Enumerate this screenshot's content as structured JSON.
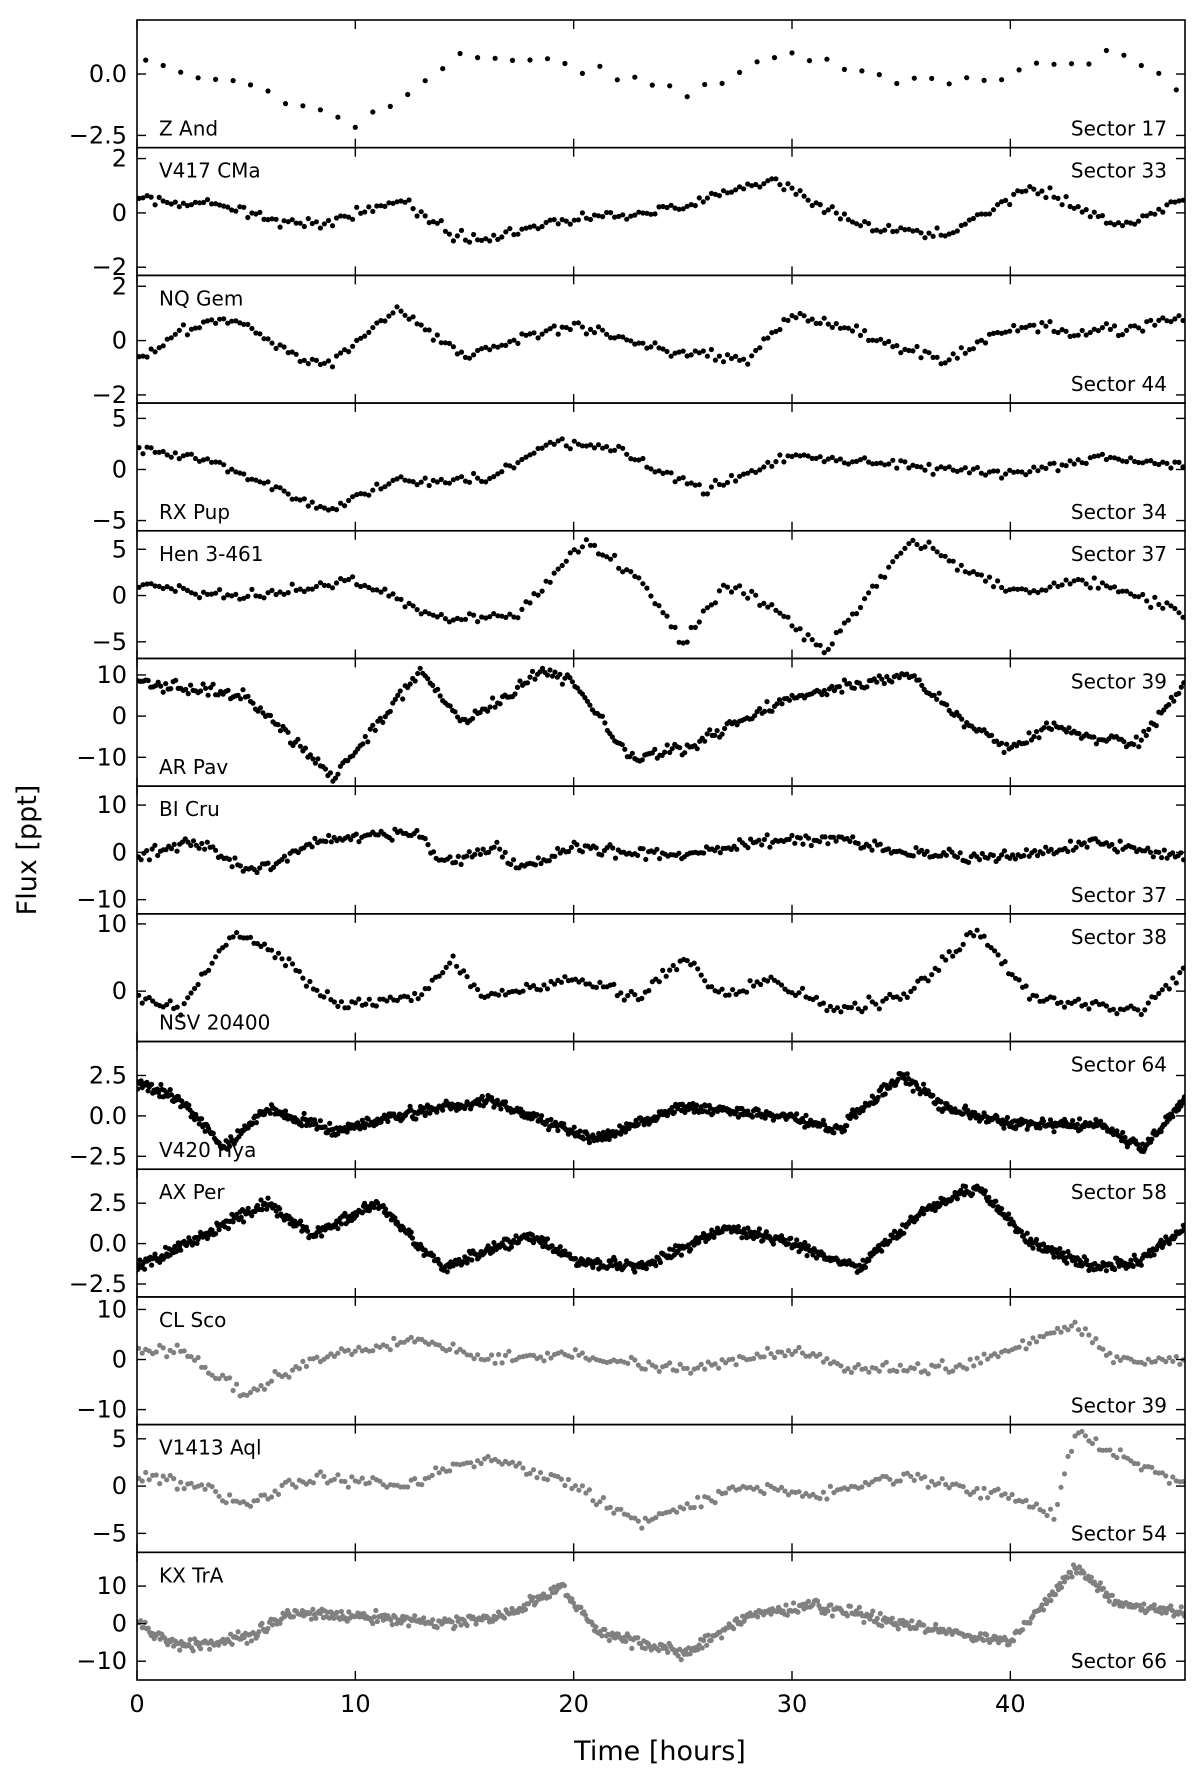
{
  "figure": {
    "xlabel": "Time [hours]",
    "ylabel": "Flux [ppt]",
    "x_ticks": [
      0,
      10,
      20,
      30,
      40
    ],
    "xlim": [
      0,
      48
    ]
  },
  "chart_data": [
    {
      "type": "scatter",
      "star": "Z And",
      "sector": "Sector 17",
      "star_pos": "bottom-left",
      "sector_pos": "bottom-right",
      "color": "#000000",
      "n_points": 60,
      "dot_r": 2.6,
      "ylim": [
        -3.0,
        2.2
      ],
      "yticks": [
        -2.5,
        0.0
      ],
      "ytick_labels": [
        "−2.5",
        "0.0"
      ],
      "x": [
        0,
        5,
        10,
        15,
        20,
        25,
        30,
        35,
        40,
        45,
        48
      ],
      "y": [
        0.5,
        -0.5,
        -2.0,
        0.8,
        0.3,
        -0.8,
        1.0,
        -0.3,
        0.0,
        1.0,
        -0.8
      ]
    },
    {
      "type": "scatter",
      "star": "V417 CMa",
      "sector": "Sector 33",
      "star_pos": "top-left",
      "sector_pos": "top-right",
      "color": "#000000",
      "n_points": 260,
      "dot_r": 2.6,
      "ylim": [
        -2.3,
        2.4
      ],
      "yticks": [
        -2,
        0,
        2
      ],
      "ytick_labels": [
        "−2",
        "0",
        "2"
      ],
      "x": [
        0,
        4,
        8,
        12,
        15,
        20,
        25,
        29,
        33,
        37,
        41,
        45,
        48
      ],
      "y": [
        0.5,
        0.2,
        -0.5,
        0.5,
        -1.0,
        -0.2,
        0.2,
        1.2,
        -0.5,
        -0.8,
        1.0,
        -0.5,
        0.5
      ]
    },
    {
      "type": "scatter",
      "star": "NQ Gem",
      "sector": "Sector 44",
      "star_pos": "top-left",
      "sector_pos": "bottom-right",
      "color": "#000000",
      "n_points": 260,
      "dot_r": 2.6,
      "ylim": [
        -2.3,
        2.4
      ],
      "yticks": [
        -2,
        0,
        2
      ],
      "ytick_labels": [
        "−2",
        "0",
        "2"
      ],
      "x": [
        0,
        2,
        4,
        8.5,
        12,
        15,
        20,
        24,
        28,
        30,
        33,
        37,
        40,
        44,
        48
      ],
      "y": [
        -0.8,
        0.3,
        0.9,
        -1.0,
        1.2,
        -0.6,
        0.6,
        -0.3,
        -0.7,
        1.0,
        0.3,
        -0.8,
        0.5,
        0.3,
        0.8
      ]
    },
    {
      "type": "scatter",
      "star": "RX Pup",
      "sector": "Sector 34",
      "star_pos": "bottom-left",
      "sector_pos": "bottom-right",
      "color": "#000000",
      "n_points": 260,
      "dot_r": 2.6,
      "ylim": [
        -6.0,
        6.5
      ],
      "yticks": [
        -5,
        0,
        5
      ],
      "ytick_labels": [
        "−5",
        "0",
        "5"
      ],
      "x": [
        0,
        4,
        8.5,
        12,
        16,
        19,
        22,
        26,
        30,
        35,
        40,
        44,
        48
      ],
      "y": [
        2.0,
        0.5,
        -4.0,
        -1.0,
        -1.0,
        2.5,
        2.0,
        -2.0,
        1.5,
        0.5,
        -0.5,
        1.0,
        0.5
      ]
    },
    {
      "type": "scatter",
      "star": "Hen 3-461",
      "sector": "Sector 37",
      "star_pos": "top-left",
      "sector_pos": "top-right",
      "color": "#000000",
      "n_points": 260,
      "dot_r": 2.6,
      "ylim": [
        -6.8,
        7.0
      ],
      "yticks": [
        -5,
        0,
        5
      ],
      "ytick_labels": [
        "−5",
        "0",
        "5"
      ],
      "x": [
        0,
        5,
        10,
        14,
        17.5,
        20.5,
        23,
        25,
        27,
        29,
        31.5,
        35.5,
        40,
        44,
        48
      ],
      "y": [
        1.0,
        0.0,
        1.5,
        -2.5,
        -2.0,
        6.0,
        2.0,
        -5.0,
        1.0,
        -1.0,
        -6.0,
        6.0,
        0.5,
        1.5,
        -2.0
      ]
    },
    {
      "type": "scatter",
      "star": "AR Pav",
      "sector": "Sector 39",
      "star_pos": "bottom-left",
      "sector_pos": "top-right",
      "color": "#000000",
      "n_points": 420,
      "dot_r": 2.6,
      "ylim": [
        -17.0,
        14.0
      ],
      "yticks": [
        -10,
        0,
        10
      ],
      "ytick_labels": [
        "−10",
        "0",
        "10"
      ],
      "x": [
        0,
        2,
        5,
        9,
        13,
        15,
        18.5,
        20,
        22.5,
        25,
        30,
        35.5,
        38,
        40,
        42,
        44,
        46,
        48
      ],
      "y": [
        8.0,
        7.0,
        5.0,
        -15.0,
        11.0,
        -2.0,
        11.0,
        8.0,
        -10.0,
        -8.0,
        5.0,
        10.0,
        -2.0,
        -8.0,
        -2.0,
        -6.0,
        -6.0,
        8.0
      ]
    },
    {
      "type": "scatter",
      "star": "BI Cru",
      "sector": "Sector 37",
      "star_pos": "top-left",
      "sector_pos": "bottom-right",
      "color": "#000000",
      "n_points": 380,
      "dot_r": 2.6,
      "ylim": [
        -13.0,
        14.0
      ],
      "yticks": [
        -10,
        0,
        10
      ],
      "ytick_labels": [
        "−10",
        "0",
        "10"
      ],
      "x": [
        0,
        2.5,
        5.5,
        8,
        10.5,
        13,
        14,
        16.5,
        17.5,
        20,
        25,
        28,
        32,
        35,
        40,
        44,
        48
      ],
      "y": [
        -1.0,
        2.0,
        -4.0,
        2.0,
        4.0,
        4.0,
        -2.5,
        1.0,
        -3.5,
        1.0,
        -1.0,
        2.0,
        3.0,
        0.0,
        -1.0,
        2.0,
        -1.0
      ]
    },
    {
      "type": "scatter",
      "star": "NSV 20400",
      "sector": "Sector 38",
      "star_pos": "bottom-left",
      "sector_pos": "top-right",
      "color": "#000000",
      "n_points": 300,
      "dot_r": 2.6,
      "ylim": [
        -7.5,
        11.5
      ],
      "yticks": [
        0,
        10
      ],
      "ytick_labels": [
        "0",
        "10"
      ],
      "x": [
        0,
        2,
        4.5,
        7,
        9,
        13,
        14.5,
        16,
        20,
        23,
        25,
        27,
        29,
        32,
        35,
        38.5,
        41,
        44,
        46,
        48
      ],
      "y": [
        -1.0,
        -3.0,
        9.0,
        4.0,
        -2.0,
        -1.0,
        5.0,
        -1.0,
        2.0,
        -1.0,
        5.0,
        -1.0,
        2.0,
        -3.0,
        -1.0,
        9.0,
        -1.0,
        -2.0,
        -3.0,
        3.0
      ]
    },
    {
      "type": "scatter",
      "star": "V420 Hya",
      "sector": "Sector 64",
      "star_pos": "bottom-left",
      "sector_pos": "top-right",
      "color": "#000000",
      "n_points": 900,
      "dot_r": 2.6,
      "ylim": [
        -3.3,
        4.6
      ],
      "yticks": [
        -2.5,
        0.0,
        2.5
      ],
      "ytick_labels": [
        "−2.5",
        "0.0",
        "2.5"
      ],
      "x": [
        0,
        2,
        4,
        6,
        9,
        12,
        16,
        21,
        25,
        30,
        32,
        35,
        37,
        40,
        44,
        46,
        48
      ],
      "y": [
        2.0,
        1.0,
        -2.0,
        0.5,
        -1.0,
        0.0,
        1.0,
        -1.5,
        0.5,
        0.0,
        -1.0,
        2.5,
        0.5,
        -0.5,
        -0.5,
        -2.0,
        1.0
      ]
    },
    {
      "type": "scatter",
      "star": "AX Per",
      "sector": "Sector 58",
      "star_pos": "top-left",
      "sector_pos": "top-right",
      "color": "#000000",
      "n_points": 900,
      "dot_r": 2.6,
      "ylim": [
        -3.3,
        4.6
      ],
      "yticks": [
        -2.5,
        0.0,
        2.5
      ],
      "ytick_labels": [
        "−2.5",
        "0.0",
        "2.5"
      ],
      "x": [
        0,
        3,
        6,
        8,
        11,
        14,
        18,
        20,
        23,
        27,
        30,
        33,
        36,
        38.5,
        41,
        44,
        46,
        48
      ],
      "y": [
        -1.5,
        0.5,
        2.5,
        0.5,
        2.5,
        -1.5,
        0.5,
        -1.0,
        -1.5,
        1.0,
        0.0,
        -1.5,
        2.0,
        3.5,
        0.0,
        -1.5,
        -1.0,
        1.0
      ]
    },
    {
      "type": "scatter",
      "star": "CL Sco",
      "sector": "Sector 39",
      "star_pos": "top-left",
      "sector_pos": "bottom-right",
      "color": "#808080",
      "n_points": 300,
      "dot_r": 2.6,
      "ylim": [
        -13.0,
        12.5
      ],
      "yticks": [
        -10,
        0,
        10
      ],
      "ytick_labels": [
        "−10",
        "0",
        "10"
      ],
      "x": [
        0,
        2,
        5,
        8,
        13,
        16,
        20,
        25,
        30,
        33,
        38,
        43,
        45,
        48
      ],
      "y": [
        2.0,
        2.0,
        -7.0,
        0.0,
        4.0,
        0.0,
        1.0,
        -2.0,
        2.0,
        -2.0,
        -1.0,
        7.0,
        0.0,
        0.0
      ]
    },
    {
      "type": "scatter",
      "star": "V1413 Aql",
      "sector": "Sector 54",
      "star_pos": "top-left",
      "sector_pos": "bottom-right",
      "color": "#808080",
      "n_points": 300,
      "dot_r": 2.6,
      "ylim": [
        -7.0,
        6.5
      ],
      "yticks": [
        -5,
        0,
        5
      ],
      "ytick_labels": [
        "−5",
        "0",
        "5"
      ],
      "x": [
        0,
        3,
        5,
        8,
        12,
        16,
        20,
        23,
        25,
        28,
        31,
        35,
        40,
        42,
        43,
        46,
        48
      ],
      "y": [
        1.0,
        0.0,
        -2.0,
        1.0,
        0.0,
        3.0,
        0.0,
        -4.0,
        -2.0,
        0.0,
        -1.0,
        1.0,
        -1.0,
        -3.0,
        5.5,
        2.0,
        0.0
      ]
    },
    {
      "type": "scatter",
      "star": "KX TrA",
      "sector": "Sector 66",
      "star_pos": "top-left",
      "sector_pos": "bottom-right",
      "color": "#808080",
      "n_points": 700,
      "dot_r": 2.6,
      "ylim": [
        -15.0,
        19.0
      ],
      "yticks": [
        -10,
        0,
        10
      ],
      "ytick_labels": [
        "−10",
        "0",
        "10"
      ],
      "x": [
        0,
        2,
        5,
        7,
        10,
        14,
        17,
        19.5,
        21,
        25,
        28,
        31,
        35,
        40,
        43,
        45,
        48
      ],
      "y": [
        0.0,
        -6.0,
        -4.0,
        3.0,
        2.0,
        0.0,
        2.0,
        10.0,
        -2.0,
        -8.0,
        2.0,
        5.0,
        0.0,
        -5.0,
        15.0,
        5.0,
        3.0
      ]
    }
  ]
}
